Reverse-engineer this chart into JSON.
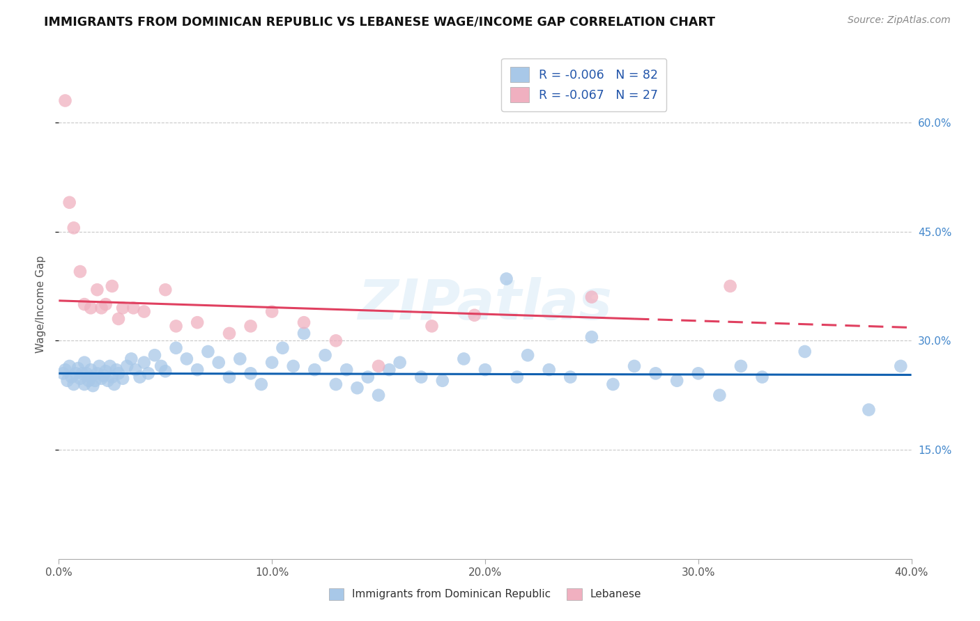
{
  "title": "IMMIGRANTS FROM DOMINICAN REPUBLIC VS LEBANESE WAGE/INCOME GAP CORRELATION CHART",
  "source": "Source: ZipAtlas.com",
  "xlabel_bottom": "Immigrants from Dominican Republic",
  "xlabel_right": "Lebanese",
  "ylabel": "Wage/Income Gap",
  "xlim": [
    0.0,
    0.4
  ],
  "ylim": [
    0.0,
    0.7
  ],
  "yticks_right": [
    0.15,
    0.3,
    0.45,
    0.6
  ],
  "ytick_labels_right": [
    "15.0%",
    "30.0%",
    "45.0%",
    "60.0%"
  ],
  "xticks": [
    0.0,
    0.1,
    0.2,
    0.3,
    0.4
  ],
  "xtick_labels": [
    "0.0%",
    "10.0%",
    "20.0%",
    "30.0%",
    "40.0%"
  ],
  "legend_r1": "R = -0.006",
  "legend_n1": "N = 82",
  "legend_r2": "R = -0.067",
  "legend_n2": "N = 27",
  "blue_color": "#a8c8e8",
  "pink_color": "#f0b0c0",
  "blue_line_color": "#1060b0",
  "pink_line_color": "#e04060",
  "watermark": "ZIPatlas",
  "blue_trend_y": [
    0.255,
    0.253
  ],
  "pink_trend_y": [
    0.355,
    0.318
  ],
  "blue_dots_x": [
    0.002,
    0.003,
    0.004,
    0.005,
    0.006,
    0.007,
    0.008,
    0.009,
    0.01,
    0.011,
    0.012,
    0.012,
    0.013,
    0.014,
    0.015,
    0.015,
    0.016,
    0.017,
    0.018,
    0.019,
    0.02,
    0.021,
    0.022,
    0.023,
    0.024,
    0.025,
    0.026,
    0.027,
    0.028,
    0.03,
    0.032,
    0.034,
    0.036,
    0.038,
    0.04,
    0.042,
    0.045,
    0.048,
    0.05,
    0.055,
    0.06,
    0.065,
    0.07,
    0.075,
    0.08,
    0.085,
    0.09,
    0.095,
    0.1,
    0.105,
    0.11,
    0.115,
    0.12,
    0.125,
    0.13,
    0.135,
    0.14,
    0.145,
    0.15,
    0.155,
    0.16,
    0.17,
    0.18,
    0.19,
    0.2,
    0.21,
    0.215,
    0.22,
    0.23,
    0.24,
    0.25,
    0.26,
    0.27,
    0.28,
    0.29,
    0.3,
    0.31,
    0.32,
    0.33,
    0.35,
    0.38,
    0.395
  ],
  "blue_dots_y": [
    0.255,
    0.26,
    0.245,
    0.265,
    0.25,
    0.24,
    0.255,
    0.262,
    0.248,
    0.255,
    0.27,
    0.24,
    0.255,
    0.245,
    0.26,
    0.25,
    0.238,
    0.245,
    0.255,
    0.265,
    0.248,
    0.252,
    0.258,
    0.245,
    0.265,
    0.25,
    0.24,
    0.26,
    0.255,
    0.248,
    0.265,
    0.275,
    0.26,
    0.25,
    0.27,
    0.255,
    0.28,
    0.265,
    0.258,
    0.29,
    0.275,
    0.26,
    0.285,
    0.27,
    0.25,
    0.275,
    0.255,
    0.24,
    0.27,
    0.29,
    0.265,
    0.31,
    0.26,
    0.28,
    0.24,
    0.26,
    0.235,
    0.25,
    0.225,
    0.26,
    0.27,
    0.25,
    0.245,
    0.275,
    0.26,
    0.385,
    0.25,
    0.28,
    0.26,
    0.25,
    0.305,
    0.24,
    0.265,
    0.255,
    0.245,
    0.255,
    0.225,
    0.265,
    0.25,
    0.285,
    0.205,
    0.265
  ],
  "pink_dots_x": [
    0.003,
    0.005,
    0.007,
    0.01,
    0.012,
    0.015,
    0.018,
    0.02,
    0.022,
    0.025,
    0.028,
    0.03,
    0.035,
    0.04,
    0.05,
    0.055,
    0.065,
    0.08,
    0.09,
    0.1,
    0.115,
    0.13,
    0.15,
    0.175,
    0.195,
    0.25,
    0.315
  ],
  "pink_dots_y": [
    0.63,
    0.49,
    0.455,
    0.395,
    0.35,
    0.345,
    0.37,
    0.345,
    0.35,
    0.375,
    0.33,
    0.345,
    0.345,
    0.34,
    0.37,
    0.32,
    0.325,
    0.31,
    0.32,
    0.34,
    0.325,
    0.3,
    0.265,
    0.32,
    0.335,
    0.36,
    0.375
  ]
}
